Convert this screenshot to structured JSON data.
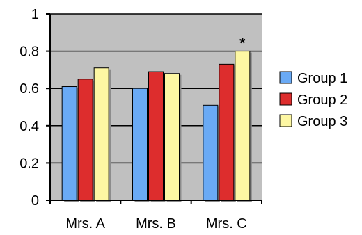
{
  "chart_data": {
    "type": "bar",
    "categories": [
      "Mrs. A",
      "Mrs. B",
      "Mrs. C"
    ],
    "series": [
      {
        "name": "Group 1",
        "values": [
          0.61,
          0.6,
          0.51
        ],
        "color": "#6aaaf5"
      },
      {
        "name": "Group 2",
        "values": [
          0.65,
          0.69,
          0.73
        ],
        "color": "#dd2d2d"
      },
      {
        "name": "Group 3",
        "values": [
          0.71,
          0.68,
          0.8
        ],
        "color": "#fdf7a3"
      }
    ],
    "yticks": [
      "0",
      "0.2",
      "0.4",
      "0.6",
      "0.8",
      "1"
    ],
    "ytick_values": [
      0,
      0.2,
      0.4,
      0.6,
      0.8,
      1
    ],
    "ylim": [
      0,
      1
    ],
    "grid": true,
    "plot_background": "#c0c0c0",
    "legend_position": "right",
    "annotations": [
      {
        "text": "*",
        "category": "Mrs. C",
        "series": "Group 3"
      }
    ]
  }
}
